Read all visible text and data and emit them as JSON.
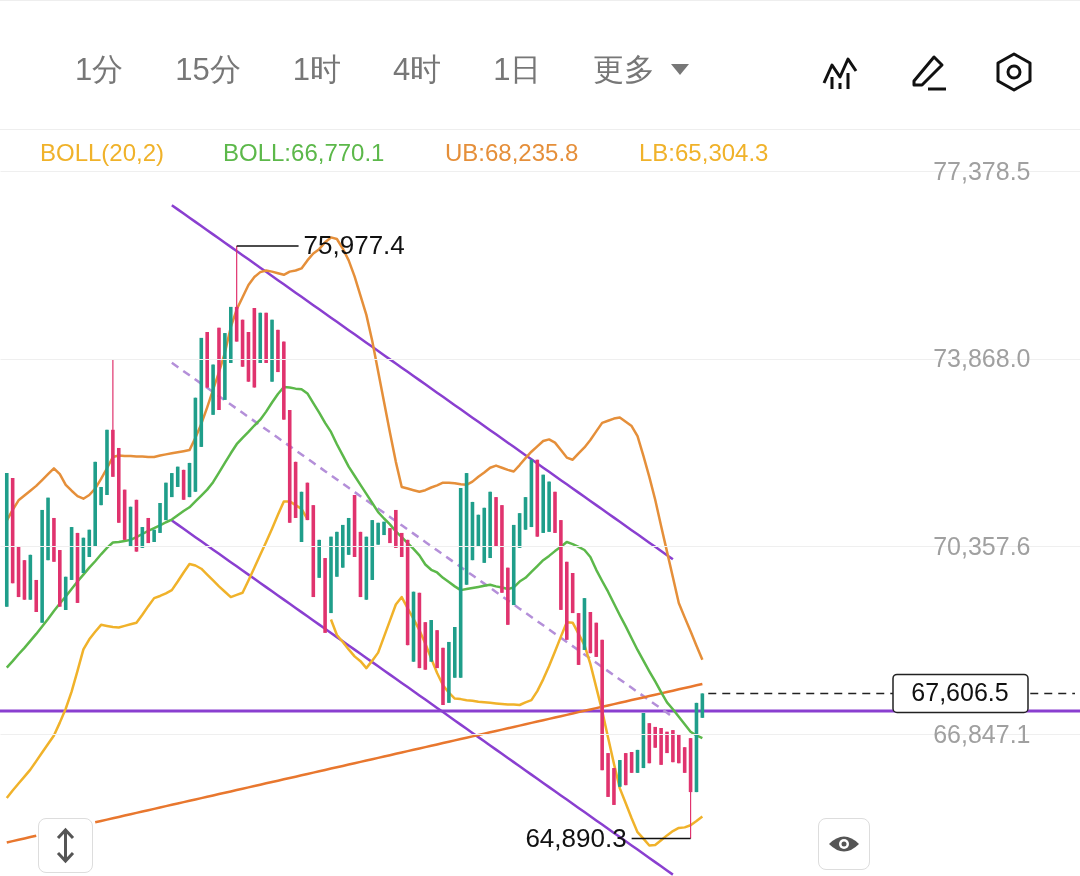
{
  "chart_data": {
    "type": "candlestick",
    "legend_title": "BOLL(20,2)",
    "grid": "y",
    "tick_labels": "y",
    "ylim": [
      64190,
      78150
    ],
    "yticks": [
      {
        "value": 77378.5,
        "label": "77,378.5"
      },
      {
        "value": 73868.0,
        "label": "73,868.0"
      },
      {
        "value": 70357.6,
        "label": "70,357.6"
      },
      {
        "value": 66847.1,
        "label": "66,847.1"
      }
    ],
    "categories": [
      null,
      null,
      null,
      null,
      null,
      null,
      null,
      null,
      null,
      null,
      null,
      null,
      null,
      null,
      null,
      null,
      null,
      null,
      null,
      null,
      null,
      null,
      null,
      null,
      null,
      null,
      null,
      null,
      null,
      null,
      null,
      null,
      null,
      null,
      null,
      null,
      null,
      null,
      null,
      null,
      null,
      null,
      null,
      null,
      null,
      null,
      null,
      null,
      null,
      null,
      null,
      null,
      null,
      null,
      null,
      null,
      null,
      null,
      null,
      null,
      null,
      null,
      null,
      null,
      null,
      null,
      null,
      null,
      null,
      null,
      null,
      null,
      null,
      null,
      null,
      null,
      null,
      null,
      null,
      null,
      null,
      null,
      null,
      null,
      null,
      null,
      null,
      null,
      null,
      null,
      null,
      null,
      null,
      null,
      null,
      null,
      null,
      null,
      null,
      null,
      null,
      null,
      null,
      null,
      null,
      null,
      null,
      null,
      null,
      null,
      null,
      null,
      null,
      null,
      null,
      null,
      null,
      null,
      null
    ],
    "ohlc": [
      [
        69230,
        71730,
        69230,
        71730
      ],
      [
        71640,
        71640,
        69670,
        69670
      ],
      [
        70350,
        70350,
        69410,
        69410
      ],
      [
        70100,
        70100,
        69360,
        69360
      ],
      [
        69360,
        70200,
        69360,
        70200
      ],
      [
        69730,
        69730,
        69130,
        69130
      ],
      [
        68930,
        71040,
        68930,
        71040
      ],
      [
        70100,
        71270,
        70100,
        71270
      ],
      [
        70890,
        70890,
        70070,
        70070
      ],
      [
        70290,
        70290,
        69230,
        69230
      ],
      [
        69170,
        69790,
        69170,
        69790
      ],
      [
        69730,
        70720,
        69730,
        70720
      ],
      [
        70610,
        70610,
        69300,
        69300
      ],
      [
        69860,
        70520,
        69860,
        70520
      ],
      [
        70160,
        70670,
        70160,
        70670
      ],
      [
        70350,
        71940,
        70350,
        71940
      ],
      [
        71130,
        71470,
        71130,
        71470
      ],
      [
        71320,
        72540,
        71320,
        72540
      ],
      [
        72540,
        73850,
        71660,
        71660
      ],
      [
        72200,
        72200,
        70800,
        70800
      ],
      [
        71420,
        71420,
        70480,
        70480
      ],
      [
        70350,
        71100,
        70350,
        71100
      ],
      [
        71230,
        71230,
        70260,
        70260
      ],
      [
        70330,
        70720,
        70330,
        70720
      ],
      [
        70890,
        70890,
        70420,
        70420
      ],
      [
        70440,
        70670,
        70440,
        70670
      ],
      [
        70610,
        71170,
        70610,
        71170
      ],
      [
        70850,
        71550,
        70850,
        71550
      ],
      [
        71280,
        71730,
        71280,
        71730
      ],
      [
        71470,
        71850,
        71470,
        71850
      ],
      [
        71790,
        71790,
        71230,
        71230
      ],
      [
        71280,
        71920,
        71280,
        71920
      ],
      [
        71380,
        73140,
        71380,
        73140
      ],
      [
        72220,
        74260,
        72220,
        74260
      ],
      [
        74370,
        74370,
        73330,
        73330
      ],
      [
        72820,
        73760,
        72820,
        73760
      ],
      [
        74450,
        74450,
        72910,
        72910
      ],
      [
        73100,
        74350,
        73100,
        74350
      ],
      [
        73790,
        74840,
        73790,
        74840
      ],
      [
        74840,
        75977.4,
        74190,
        74190
      ],
      [
        74600,
        74600,
        73720,
        73720
      ],
      [
        74370,
        74370,
        73440,
        73440
      ],
      [
        74820,
        74820,
        73330,
        73330
      ],
      [
        73790,
        74730,
        73790,
        74730
      ],
      [
        74730,
        74730,
        73790,
        73790
      ],
      [
        73440,
        74600,
        73440,
        74600
      ],
      [
        74410,
        74410,
        73620,
        73620
      ],
      [
        74190,
        74190,
        72730,
        72730
      ],
      [
        72910,
        72910,
        70800,
        70800
      ],
      [
        71940,
        71940,
        70890,
        70890
      ],
      [
        70440,
        71380,
        70440,
        71380
      ],
      [
        71550,
        71550,
        70850,
        70850
      ],
      [
        71130,
        71130,
        69410,
        69410
      ],
      [
        69770,
        70480,
        69770,
        70480
      ],
      [
        70140,
        70140,
        68740,
        68740
      ],
      [
        69110,
        70540,
        69110,
        70540
      ],
      [
        69790,
        70630,
        69790,
        70630
      ],
      [
        69960,
        70760,
        69960,
        70760
      ],
      [
        70200,
        70890,
        70200,
        70890
      ],
      [
        71320,
        71320,
        70160,
        70160
      ],
      [
        70630,
        70630,
        69410,
        69410
      ],
      [
        69360,
        70540,
        69360,
        70540
      ],
      [
        69730,
        70850,
        69730,
        70850
      ],
      [
        70390,
        70800,
        70390,
        70800
      ],
      [
        70570,
        70820,
        70570,
        70820
      ],
      [
        70700,
        70700,
        70420,
        70420
      ],
      [
        71040,
        71040,
        70330,
        70330
      ],
      [
        70610,
        70610,
        70160,
        70160
      ],
      [
        70480,
        70480,
        68510,
        68510
      ],
      [
        68200,
        69510,
        68200,
        69510
      ],
      [
        69490,
        69490,
        68080,
        68080
      ],
      [
        68940,
        68940,
        68050,
        68050
      ],
      [
        68200,
        68980,
        68200,
        68980
      ],
      [
        68790,
        68790,
        68080,
        68080
      ],
      [
        68460,
        68460,
        67390,
        67390
      ],
      [
        67430,
        68570,
        67430,
        68570
      ],
      [
        67900,
        68850,
        67900,
        68850
      ],
      [
        67900,
        71450,
        67900,
        71450
      ],
      [
        69640,
        71730,
        69640,
        71730
      ],
      [
        70100,
        71190,
        70100,
        71190
      ],
      [
        70350,
        70950,
        70350,
        70950
      ],
      [
        70050,
        71080,
        70050,
        71080
      ],
      [
        70140,
        71380,
        70140,
        71380
      ],
      [
        71280,
        71280,
        70350,
        70350
      ],
      [
        71130,
        71130,
        69490,
        69490
      ],
      [
        69960,
        69960,
        68890,
        68890
      ],
      [
        69260,
        70760,
        69260,
        70760
      ],
      [
        70330,
        70980,
        70330,
        70980
      ],
      [
        70670,
        71280,
        70670,
        71280
      ],
      [
        70720,
        71980,
        70720,
        71980
      ],
      [
        71980,
        71980,
        70540,
        70540
      ],
      [
        70610,
        71700,
        70610,
        71700
      ],
      [
        70630,
        71570,
        70630,
        71570
      ],
      [
        71380,
        71380,
        70610,
        70610
      ],
      [
        70850,
        70850,
        69170,
        69170
      ],
      [
        70070,
        70070,
        68610,
        68610
      ],
      [
        69860,
        69860,
        69110,
        69110
      ],
      [
        69110,
        69110,
        68140,
        68140
      ],
      [
        68420,
        69390,
        68420,
        69390
      ],
      [
        69130,
        69130,
        68360,
        68360
      ],
      [
        68930,
        68930,
        68290,
        68290
      ],
      [
        68610,
        68610,
        66170,
        66170
      ],
      [
        66490,
        66490,
        65670,
        65670
      ],
      [
        66210,
        66210,
        65520,
        65520
      ],
      [
        65860,
        66360,
        65860,
        66360
      ],
      [
        66490,
        66490,
        65890,
        65890
      ],
      [
        66510,
        66510,
        66120,
        66120
      ],
      [
        66120,
        66550,
        66120,
        66550
      ],
      [
        66210,
        67240,
        66210,
        67240
      ],
      [
        67050,
        67050,
        66300,
        66300
      ],
      [
        66980,
        66980,
        66590,
        66590
      ],
      [
        66960,
        66960,
        66270,
        66270
      ],
      [
        66890,
        66890,
        66490,
        66490
      ],
      [
        66920,
        66920,
        66320,
        66320
      ],
      [
        66830,
        66830,
        66300,
        66300
      ],
      [
        66600,
        66600,
        66120,
        66120
      ],
      [
        66770,
        66770,
        64890.3,
        65760
      ],
      [
        65760,
        67430,
        65760,
        67430
      ],
      [
        67150,
        67606.5,
        67150,
        67606.5
      ]
    ],
    "series": [
      {
        "type": "line",
        "line_style": "dashed",
        "color": "#b48fd9",
        "values": [
          null,
          null,
          null,
          null,
          null,
          null,
          null,
          null,
          null,
          null,
          null,
          null,
          null,
          null,
          null,
          null,
          null,
          null,
          null,
          null,
          null,
          null,
          null,
          null,
          null,
          null,
          null,
          null,
          73793,
          73715,
          73637,
          73559,
          73481,
          73403,
          73325,
          73247,
          73169,
          73091,
          73013,
          72935,
          72857,
          72780,
          72702,
          72624,
          72546,
          72468,
          72390,
          72312,
          72234,
          72156,
          72078,
          72000,
          71922,
          71844,
          71766,
          71688,
          71610,
          71532,
          71454,
          71376,
          71298,
          71220,
          71142,
          71064,
          70986,
          70908,
          70830,
          70752,
          70675,
          70597,
          70519,
          70441,
          70363,
          70285,
          70207,
          70129,
          70051,
          69973,
          69895,
          69817,
          69739,
          69661,
          69583,
          69505,
          69427,
          69349,
          69271,
          69193,
          69115,
          69037,
          68959,
          68881,
          68803,
          68725,
          68647,
          68570,
          68492,
          68414,
          68336,
          68258,
          68180,
          68102,
          68024,
          67946,
          67868,
          67790,
          67712,
          67634,
          67556,
          67478,
          67400,
          67322,
          67244,
          67166,
          null,
          null,
          null,
          null,
          null
        ]
      },
      {
        "type": "line",
        "color": "#8a3fd0",
        "values": [
          null,
          null,
          null,
          null,
          null,
          null,
          null,
          null,
          null,
          null,
          null,
          null,
          null,
          null,
          null,
          null,
          null,
          null,
          null,
          null,
          null,
          null,
          null,
          null,
          null,
          null,
          null,
          null,
          76743,
          76665,
          76587,
          76509,
          76431,
          76353,
          76275,
          76197,
          76119,
          76041,
          75963,
          75885,
          75807,
          75730,
          75652,
          75574,
          75496,
          75418,
          75340,
          75262,
          75184,
          75106,
          75028,
          74950,
          74872,
          74794,
          74716,
          74638,
          74560,
          74482,
          74404,
          74326,
          74248,
          74170,
          74092,
          74014,
          73936,
          73858,
          73780,
          73702,
          73625,
          73547,
          73469,
          73391,
          73313,
          73235,
          73157,
          73079,
          73001,
          72923,
          72845,
          72767,
          72689,
          72611,
          72533,
          72455,
          72377,
          72299,
          72221,
          72143,
          72065,
          71987,
          71909,
          71831,
          71753,
          71675,
          71597,
          71520,
          71442,
          71364,
          71286,
          71208,
          71130,
          71052,
          70974,
          70896,
          70818,
          70740,
          70662,
          70584,
          70506,
          70428,
          70350,
          70272,
          70194,
          70116,
          null,
          null,
          null,
          null,
          null
        ]
      },
      {
        "type": "line",
        "color": "#8a3fd0",
        "values": [
          null,
          null,
          null,
          null,
          null,
          null,
          null,
          null,
          null,
          null,
          null,
          null,
          null,
          null,
          null,
          null,
          null,
          null,
          null,
          null,
          null,
          null,
          null,
          null,
          null,
          null,
          null,
          null,
          70843,
          70765,
          70687,
          70609,
          70531,
          70453,
          70375,
          70297,
          70219,
          70141,
          70063,
          69985,
          69907,
          69830,
          69752,
          69674,
          69596,
          69518,
          69440,
          69362,
          69284,
          69206,
          69128,
          69050,
          68972,
          68894,
          68816,
          68738,
          68660,
          68582,
          68504,
          68426,
          68348,
          68270,
          68192,
          68114,
          68036,
          67958,
          67880,
          67802,
          67725,
          67647,
          67569,
          67491,
          67413,
          67335,
          67257,
          67179,
          67101,
          67023,
          66945,
          66867,
          66789,
          66711,
          66633,
          66555,
          66477,
          66399,
          66321,
          66243,
          66165,
          66087,
          66009,
          65931,
          65853,
          65775,
          65697,
          65620,
          65542,
          65464,
          65386,
          65308,
          65230,
          65152,
          65074,
          64996,
          64918,
          64840,
          64762,
          64684,
          64606,
          64528,
          64450,
          64372,
          64294,
          64216,
          null,
          null,
          null,
          null,
          null
        ]
      },
      {
        "type": "line",
        "color": "#e8772e",
        "values": [
          64818,
          64843,
          64868,
          64893,
          64919,
          64944,
          null,
          null,
          null,
          null,
          null,
          null,
          null,
          null,
          null,
          65195,
          65220,
          65245,
          65270,
          65295,
          65321,
          65346,
          65371,
          65396,
          65421,
          65446,
          65471,
          65497,
          65522,
          65547,
          65572,
          65597,
          65622,
          65647,
          65672,
          65698,
          65723,
          65748,
          65773,
          65798,
          65823,
          65848,
          65873,
          65899,
          65924,
          65949,
          65974,
          65999,
          66024,
          66049,
          66075,
          66100,
          66125,
          66150,
          66175,
          66200,
          66225,
          66250,
          66276,
          66301,
          66326,
          66351,
          66376,
          66401,
          66426,
          66451,
          66477,
          66502,
          66527,
          66552,
          66577,
          66602,
          66627,
          66652,
          66678,
          66703,
          66728,
          66753,
          66778,
          66803,
          66828,
          66854,
          66879,
          66904,
          66929,
          66954,
          66979,
          67004,
          67029,
          67055,
          67080,
          67105,
          67130,
          67155,
          67180,
          67205,
          67230,
          67256,
          67281,
          67306,
          67331,
          67356,
          67381,
          67406,
          67431,
          67457,
          67482,
          67507,
          67532,
          67557,
          67582,
          67607,
          67632,
          67658,
          67683,
          67708,
          67733,
          67758,
          67783
        ]
      },
      {
        "type": "line",
        "name": "BOLL:66,770.1",
        "color": "#5cb84a",
        "values": [
          68090,
          68210,
          68340,
          68460,
          68590,
          68720,
          68860,
          69000,
          69150,
          69290,
          69420,
          69560,
          69700,
          69830,
          69960,
          70080,
          70210,
          70330,
          70430,
          70440,
          70460,
          70480,
          70530,
          70590,
          70650,
          70700,
          70750,
          70810,
          70860,
          70940,
          71020,
          71090,
          71200,
          71310,
          71420,
          71560,
          71740,
          71920,
          72100,
          72270,
          72390,
          72500,
          72620,
          72730,
          72880,
          73050,
          73210,
          73340,
          73330,
          73310,
          73300,
          73220,
          73040,
          72860,
          72670,
          72500,
          72270,
          72060,
          71850,
          71680,
          71510,
          71340,
          71170,
          71000,
          70880,
          70770,
          70640,
          70530,
          70420,
          70310,
          70190,
          70020,
          69920,
          69870,
          69770,
          69690,
          69610,
          69540,
          69560,
          69580,
          69600,
          69620,
          69640,
          69610,
          69590,
          69560,
          69590,
          69700,
          69770,
          69880,
          69990,
          70100,
          70180,
          70270,
          70350,
          70440,
          70400,
          70350,
          70290,
          70160,
          69920,
          69710,
          69510,
          69290,
          69070,
          68860,
          68640,
          68420,
          68220,
          68020,
          67830,
          67630,
          67440,
          67310,
          67170,
          67030,
          66890,
          66820,
          66770.1
        ]
      },
      {
        "type": "line",
        "name": "UB:68,235.8",
        "color": "#e58f3a",
        "values": [
          70840,
          71040,
          71220,
          71310,
          71400,
          71490,
          71600,
          71710,
          71820,
          71710,
          71510,
          71400,
          71300,
          71250,
          71320,
          71440,
          71620,
          71820,
          72030,
          72060,
          72050,
          72050,
          72040,
          72040,
          72030,
          72030,
          72060,
          72080,
          72100,
          72120,
          72140,
          72160,
          72390,
          72650,
          72960,
          73290,
          73620,
          73980,
          74460,
          74790,
          75020,
          75250,
          75400,
          75490,
          75520,
          75500,
          75470,
          75440,
          75500,
          75520,
          75560,
          75710,
          75840,
          75920,
          76050,
          76140,
          76110,
          75930,
          75710,
          75410,
          75050,
          74690,
          74200,
          73630,
          73060,
          72490,
          71940,
          71470,
          71440,
          71410,
          71380,
          71410,
          71460,
          71500,
          71550,
          71550,
          71540,
          71520,
          71510,
          71570,
          71660,
          71740,
          71830,
          71870,
          71830,
          71790,
          71760,
          71880,
          72010,
          72130,
          72230,
          72330,
          72360,
          72300,
          72160,
          72020,
          71980,
          72100,
          72210,
          72350,
          72510,
          72670,
          72710,
          72750,
          72770,
          72690,
          72610,
          72420,
          72050,
          71660,
          71230,
          70740,
          70260,
          69780,
          69300,
          69030,
          68770,
          68500,
          68235.8
        ]
      },
      {
        "type": "line",
        "name": "LB:65,304.3",
        "color": "#f0b22a",
        "values": [
          65650,
          65790,
          65920,
          66050,
          66180,
          66340,
          66500,
          66660,
          66820,
          67060,
          67320,
          67640,
          68030,
          68430,
          68620,
          68760,
          68890,
          68870,
          68850,
          68840,
          68870,
          68900,
          68930,
          69080,
          69240,
          69390,
          69430,
          69480,
          69540,
          69700,
          69870,
          70030,
          70000,
          69940,
          69830,
          69720,
          69610,
          69510,
          69410,
          69450,
          69490,
          69720,
          69960,
          70200,
          70440,
          70690,
          70950,
          71200,
          71200,
          71130,
          71060,
          70870,
          null,
          null,
          null,
          68990,
          68700,
          68570,
          68430,
          68300,
          68210,
          68080,
          68220,
          68370,
          68670,
          68970,
          69270,
          69410,
          69200,
          69000,
          68790,
          68540,
          68260,
          67990,
          67760,
          67620,
          67510,
          67500,
          67480,
          67470,
          67450,
          67440,
          67430,
          67420,
          67410,
          67400,
          67400,
          67390,
          67440,
          67480,
          67650,
          67870,
          68120,
          68390,
          68670,
          68940,
          68930,
          68720,
          68510,
          68160,
          67720,
          67280,
          66780,
          66290,
          65830,
          65550,
          65270,
          65010,
          64890,
          64760,
          64770,
          64860,
          64950,
          65030,
          65090,
          65100,
          65140,
          65220,
          65304.3
        ]
      }
    ],
    "ref_lines": [
      {
        "axis": "y",
        "value": 67280,
        "color": "#8a3fd0"
      },
      {
        "axis": "y",
        "value": 67606.5,
        "label": "67,606.5",
        "color": "#222222",
        "line_style": "dashed"
      }
    ],
    "annotations": [
      "1分",
      "15分",
      "1时",
      "4时",
      "1日",
      "更多",
      "75,977.4",
      "64,890.3"
    ]
  }
}
